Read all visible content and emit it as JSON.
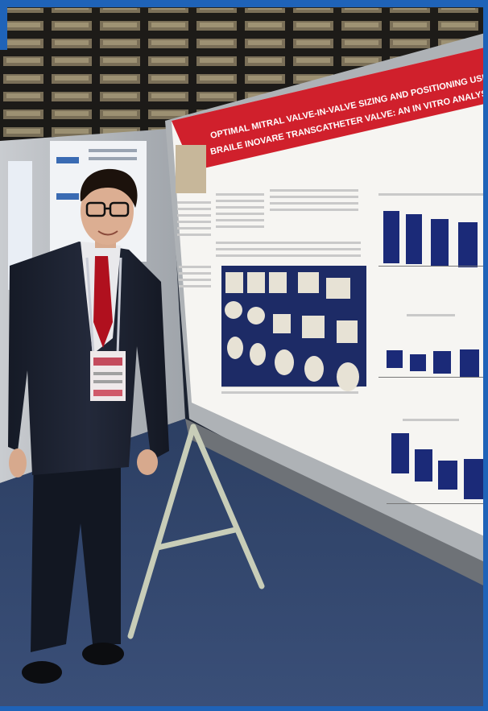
{
  "photo": {
    "description_labels": {
      "poster_title_line1": "OPTIMAL MITRAL VALVE-IN-VALVE SIZING AND POSITIONING USI",
      "poster_title_line2": "BRAILE INOVARE TRANSCATHETER VALVE: AN IN VITRO ANALYSI",
      "badge_text": "",
      "chart1_title": "",
      "chart2_title": "",
      "chart3_title": ""
    }
  }
}
